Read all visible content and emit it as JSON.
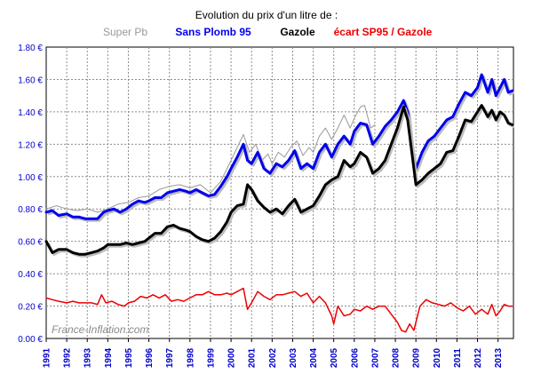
{
  "chart_data": {
    "type": "line",
    "title": "Evolution du prix d'un litre de :",
    "watermark": "France-Inflation.com",
    "x_range": [
      1991.0,
      2013.75
    ],
    "ylim": [
      0,
      1.8
    ],
    "y_ticks": [
      {
        "v": 0.0,
        "label": "0.00 €"
      },
      {
        "v": 0.2,
        "label": "0.20 €"
      },
      {
        "v": 0.4,
        "label": "0.40 €"
      },
      {
        "v": 0.6,
        "label": "0.60 €"
      },
      {
        "v": 0.8,
        "label": "0.80 €"
      },
      {
        "v": 1.0,
        "label": "1.00 €"
      },
      {
        "v": 1.2,
        "label": "1.20 €"
      },
      {
        "v": 1.4,
        "label": "1.40 €"
      },
      {
        "v": 1.6,
        "label": "1.60 €"
      },
      {
        "v": 1.8,
        "label": "1.80 €"
      }
    ],
    "x_ticks": [
      "1991",
      "1992",
      "1993",
      "1994",
      "1995",
      "1996",
      "1997",
      "1998",
      "1999",
      "2000",
      "2001",
      "2002",
      "2003",
      "2004",
      "2005",
      "2006",
      "2007",
      "2008",
      "2009",
      "2010",
      "2011",
      "2012",
      "2013"
    ],
    "grid": true,
    "legend_position": "top",
    "series": [
      {
        "name": "Super Pb",
        "color": "#999999",
        "width": 1,
        "points": [
          [
            1991.0,
            0.8
          ],
          [
            1991.5,
            0.82
          ],
          [
            1992.0,
            0.8
          ],
          [
            1992.5,
            0.79
          ],
          [
            1993.0,
            0.8
          ],
          [
            1993.5,
            0.78
          ],
          [
            1994.0,
            0.8
          ],
          [
            1994.5,
            0.83
          ],
          [
            1995.0,
            0.84
          ],
          [
            1995.5,
            0.87
          ],
          [
            1996.0,
            0.88
          ],
          [
            1996.5,
            0.92
          ],
          [
            1997.0,
            0.94
          ],
          [
            1997.5,
            0.95
          ],
          [
            1998.0,
            0.93
          ],
          [
            1998.5,
            0.95
          ],
          [
            1999.0,
            0.9
          ],
          [
            1999.5,
            0.97
          ],
          [
            2000.0,
            1.1
          ],
          [
            2000.3,
            1.18
          ],
          [
            2000.6,
            1.26
          ],
          [
            2000.9,
            1.15
          ],
          [
            2001.2,
            1.2
          ],
          [
            2001.5,
            1.1
          ],
          [
            2001.8,
            1.14
          ],
          [
            2002.0,
            1.08
          ],
          [
            2002.3,
            1.15
          ],
          [
            2002.6,
            1.12
          ],
          [
            2002.9,
            1.18
          ],
          [
            2003.2,
            1.22
          ],
          [
            2003.5,
            1.13
          ],
          [
            2003.8,
            1.18
          ],
          [
            2004.0,
            1.15
          ],
          [
            2004.3,
            1.25
          ],
          [
            2004.6,
            1.3
          ],
          [
            2004.9,
            1.23
          ],
          [
            2005.2,
            1.3
          ],
          [
            2005.5,
            1.38
          ],
          [
            2005.8,
            1.3
          ],
          [
            2006.0,
            1.36
          ],
          [
            2006.3,
            1.43
          ],
          [
            2006.5,
            1.44
          ],
          [
            2006.8,
            1.3
          ],
          [
            2007.0,
            1.32
          ]
        ]
      },
      {
        "name": "Sans Plomb 95",
        "color": "#0000ee",
        "width": 3,
        "points": [
          [
            1991.0,
            0.78
          ],
          [
            1991.3,
            0.79
          ],
          [
            1991.6,
            0.76
          ],
          [
            1992.0,
            0.77
          ],
          [
            1992.3,
            0.75
          ],
          [
            1992.6,
            0.75
          ],
          [
            1992.9,
            0.74
          ],
          [
            1993.2,
            0.74
          ],
          [
            1993.5,
            0.74
          ],
          [
            1993.8,
            0.78
          ],
          [
            1994.0,
            0.79
          ],
          [
            1994.3,
            0.8
          ],
          [
            1994.6,
            0.78
          ],
          [
            1994.9,
            0.8
          ],
          [
            1995.2,
            0.83
          ],
          [
            1995.5,
            0.85
          ],
          [
            1995.8,
            0.84
          ],
          [
            1996.0,
            0.85
          ],
          [
            1996.3,
            0.87
          ],
          [
            1996.6,
            0.87
          ],
          [
            1996.9,
            0.9
          ],
          [
            1997.2,
            0.91
          ],
          [
            1997.5,
            0.92
          ],
          [
            1997.8,
            0.91
          ],
          [
            1998.0,
            0.9
          ],
          [
            1998.3,
            0.92
          ],
          [
            1998.6,
            0.9
          ],
          [
            1998.9,
            0.88
          ],
          [
            1999.2,
            0.89
          ],
          [
            1999.5,
            0.94
          ],
          [
            1999.8,
            1.0
          ],
          [
            2000.0,
            1.05
          ],
          [
            2000.3,
            1.12
          ],
          [
            2000.6,
            1.2
          ],
          [
            2000.8,
            1.1
          ],
          [
            2001.0,
            1.08
          ],
          [
            2001.3,
            1.15
          ],
          [
            2001.6,
            1.05
          ],
          [
            2001.9,
            1.02
          ],
          [
            2002.2,
            1.08
          ],
          [
            2002.5,
            1.06
          ],
          [
            2002.8,
            1.1
          ],
          [
            2003.1,
            1.16
          ],
          [
            2003.4,
            1.05
          ],
          [
            2003.7,
            1.08
          ],
          [
            2004.0,
            1.05
          ],
          [
            2004.3,
            1.15
          ],
          [
            2004.6,
            1.2
          ],
          [
            2004.9,
            1.12
          ],
          [
            2005.2,
            1.2
          ],
          [
            2005.5,
            1.25
          ],
          [
            2005.8,
            1.2
          ],
          [
            2006.0,
            1.28
          ],
          [
            2006.3,
            1.33
          ],
          [
            2006.6,
            1.32
          ],
          [
            2006.9,
            1.2
          ],
          [
            2007.2,
            1.25
          ],
          [
            2007.5,
            1.31
          ],
          [
            2007.8,
            1.35
          ],
          [
            2008.1,
            1.4
          ],
          [
            2008.4,
            1.47
          ],
          [
            2008.6,
            1.4
          ],
          [
            2008.8,
            1.15
          ],
          [
            2009.0,
            1.05
          ],
          [
            2009.3,
            1.15
          ],
          [
            2009.6,
            1.22
          ],
          [
            2009.9,
            1.25
          ],
          [
            2010.2,
            1.3
          ],
          [
            2010.5,
            1.35
          ],
          [
            2010.8,
            1.37
          ],
          [
            2011.1,
            1.45
          ],
          [
            2011.4,
            1.52
          ],
          [
            2011.7,
            1.5
          ],
          [
            2012.0,
            1.55
          ],
          [
            2012.2,
            1.63
          ],
          [
            2012.5,
            1.52
          ],
          [
            2012.7,
            1.6
          ],
          [
            2012.9,
            1.5
          ],
          [
            2013.1,
            1.55
          ],
          [
            2013.3,
            1.6
          ],
          [
            2013.5,
            1.52
          ],
          [
            2013.7,
            1.53
          ]
        ]
      },
      {
        "name": "Gazole",
        "color": "#000000",
        "width": 3,
        "points": [
          [
            1991.0,
            0.6
          ],
          [
            1991.3,
            0.53
          ],
          [
            1991.6,
            0.55
          ],
          [
            1992.0,
            0.55
          ],
          [
            1992.3,
            0.53
          ],
          [
            1992.6,
            0.52
          ],
          [
            1992.9,
            0.52
          ],
          [
            1993.2,
            0.53
          ],
          [
            1993.5,
            0.54
          ],
          [
            1993.8,
            0.56
          ],
          [
            1994.0,
            0.58
          ],
          [
            1994.3,
            0.58
          ],
          [
            1994.6,
            0.58
          ],
          [
            1994.9,
            0.59
          ],
          [
            1995.2,
            0.58
          ],
          [
            1995.5,
            0.59
          ],
          [
            1995.8,
            0.6
          ],
          [
            1996.0,
            0.62
          ],
          [
            1996.3,
            0.65
          ],
          [
            1996.6,
            0.65
          ],
          [
            1996.9,
            0.69
          ],
          [
            1997.2,
            0.7
          ],
          [
            1997.5,
            0.68
          ],
          [
            1997.8,
            0.67
          ],
          [
            1998.0,
            0.66
          ],
          [
            1998.3,
            0.63
          ],
          [
            1998.6,
            0.61
          ],
          [
            1998.9,
            0.6
          ],
          [
            1999.2,
            0.62
          ],
          [
            1999.5,
            0.66
          ],
          [
            1999.8,
            0.72
          ],
          [
            2000.0,
            0.78
          ],
          [
            2000.3,
            0.82
          ],
          [
            2000.6,
            0.83
          ],
          [
            2000.8,
            0.95
          ],
          [
            2001.0,
            0.92
          ],
          [
            2001.3,
            0.85
          ],
          [
            2001.6,
            0.81
          ],
          [
            2001.9,
            0.78
          ],
          [
            2002.2,
            0.8
          ],
          [
            2002.5,
            0.77
          ],
          [
            2002.8,
            0.82
          ],
          [
            2003.1,
            0.86
          ],
          [
            2003.4,
            0.78
          ],
          [
            2003.7,
            0.8
          ],
          [
            2004.0,
            0.82
          ],
          [
            2004.3,
            0.88
          ],
          [
            2004.6,
            0.95
          ],
          [
            2004.9,
            0.98
          ],
          [
            2005.2,
            1.0
          ],
          [
            2005.5,
            1.1
          ],
          [
            2005.8,
            1.06
          ],
          [
            2006.0,
            1.08
          ],
          [
            2006.3,
            1.15
          ],
          [
            2006.6,
            1.12
          ],
          [
            2006.9,
            1.02
          ],
          [
            2007.2,
            1.05
          ],
          [
            2007.5,
            1.1
          ],
          [
            2007.8,
            1.2
          ],
          [
            2008.1,
            1.3
          ],
          [
            2008.4,
            1.43
          ],
          [
            2008.6,
            1.35
          ],
          [
            2008.8,
            1.15
          ],
          [
            2009.0,
            0.95
          ],
          [
            2009.3,
            0.98
          ],
          [
            2009.6,
            1.02
          ],
          [
            2009.9,
            1.05
          ],
          [
            2010.2,
            1.08
          ],
          [
            2010.5,
            1.15
          ],
          [
            2010.8,
            1.16
          ],
          [
            2011.1,
            1.25
          ],
          [
            2011.4,
            1.35
          ],
          [
            2011.7,
            1.34
          ],
          [
            2012.0,
            1.4
          ],
          [
            2012.2,
            1.44
          ],
          [
            2012.5,
            1.37
          ],
          [
            2012.7,
            1.41
          ],
          [
            2012.9,
            1.35
          ],
          [
            2013.1,
            1.4
          ],
          [
            2013.3,
            1.38
          ],
          [
            2013.5,
            1.33
          ],
          [
            2013.7,
            1.32
          ]
        ]
      },
      {
        "name": "écart SP95 / Gazole",
        "color": "#ee0000",
        "width": 1.5,
        "points": [
          [
            1991.0,
            0.25
          ],
          [
            1991.3,
            0.24
          ],
          [
            1991.6,
            0.23
          ],
          [
            1992.0,
            0.22
          ],
          [
            1992.3,
            0.23
          ],
          [
            1992.6,
            0.22
          ],
          [
            1992.9,
            0.22
          ],
          [
            1993.2,
            0.22
          ],
          [
            1993.5,
            0.21
          ],
          [
            1993.7,
            0.27
          ],
          [
            1993.9,
            0.22
          ],
          [
            1994.2,
            0.23
          ],
          [
            1994.5,
            0.21
          ],
          [
            1994.8,
            0.2
          ],
          [
            1995.0,
            0.22
          ],
          [
            1995.3,
            0.23
          ],
          [
            1995.6,
            0.26
          ],
          [
            1995.9,
            0.25
          ],
          [
            1996.2,
            0.27
          ],
          [
            1996.5,
            0.25
          ],
          [
            1996.8,
            0.27
          ],
          [
            1997.1,
            0.23
          ],
          [
            1997.4,
            0.24
          ],
          [
            1997.7,
            0.23
          ],
          [
            1998.0,
            0.25
          ],
          [
            1998.3,
            0.27
          ],
          [
            1998.6,
            0.27
          ],
          [
            1998.9,
            0.29
          ],
          [
            1999.2,
            0.27
          ],
          [
            1999.5,
            0.27
          ],
          [
            1999.8,
            0.28
          ],
          [
            2000.0,
            0.27
          ],
          [
            2000.3,
            0.29
          ],
          [
            2000.6,
            0.31
          ],
          [
            2000.8,
            0.18
          ],
          [
            2001.0,
            0.22
          ],
          [
            2001.3,
            0.29
          ],
          [
            2001.6,
            0.26
          ],
          [
            2001.9,
            0.24
          ],
          [
            2002.2,
            0.27
          ],
          [
            2002.5,
            0.27
          ],
          [
            2002.8,
            0.28
          ],
          [
            2003.1,
            0.29
          ],
          [
            2003.4,
            0.26
          ],
          [
            2003.7,
            0.28
          ],
          [
            2004.0,
            0.22
          ],
          [
            2004.3,
            0.26
          ],
          [
            2004.6,
            0.22
          ],
          [
            2004.9,
            0.14
          ],
          [
            2005.0,
            0.09
          ],
          [
            2005.2,
            0.2
          ],
          [
            2005.5,
            0.14
          ],
          [
            2005.8,
            0.15
          ],
          [
            2006.0,
            0.18
          ],
          [
            2006.3,
            0.17
          ],
          [
            2006.6,
            0.2
          ],
          [
            2006.9,
            0.18
          ],
          [
            2007.2,
            0.2
          ],
          [
            2007.5,
            0.2
          ],
          [
            2007.8,
            0.15
          ],
          [
            2008.1,
            0.1
          ],
          [
            2008.3,
            0.05
          ],
          [
            2008.5,
            0.04
          ],
          [
            2008.7,
            0.09
          ],
          [
            2008.9,
            0.05
          ],
          [
            2009.0,
            0.1
          ],
          [
            2009.2,
            0.2
          ],
          [
            2009.5,
            0.24
          ],
          [
            2009.8,
            0.22
          ],
          [
            2010.1,
            0.21
          ],
          [
            2010.4,
            0.2
          ],
          [
            2010.7,
            0.22
          ],
          [
            2011.0,
            0.19
          ],
          [
            2011.3,
            0.17
          ],
          [
            2011.6,
            0.2
          ],
          [
            2011.9,
            0.15
          ],
          [
            2012.2,
            0.18
          ],
          [
            2012.5,
            0.15
          ],
          [
            2012.7,
            0.21
          ],
          [
            2012.9,
            0.14
          ],
          [
            2013.1,
            0.17
          ],
          [
            2013.3,
            0.21
          ],
          [
            2013.5,
            0.2
          ],
          [
            2013.7,
            0.2
          ]
        ]
      }
    ]
  }
}
